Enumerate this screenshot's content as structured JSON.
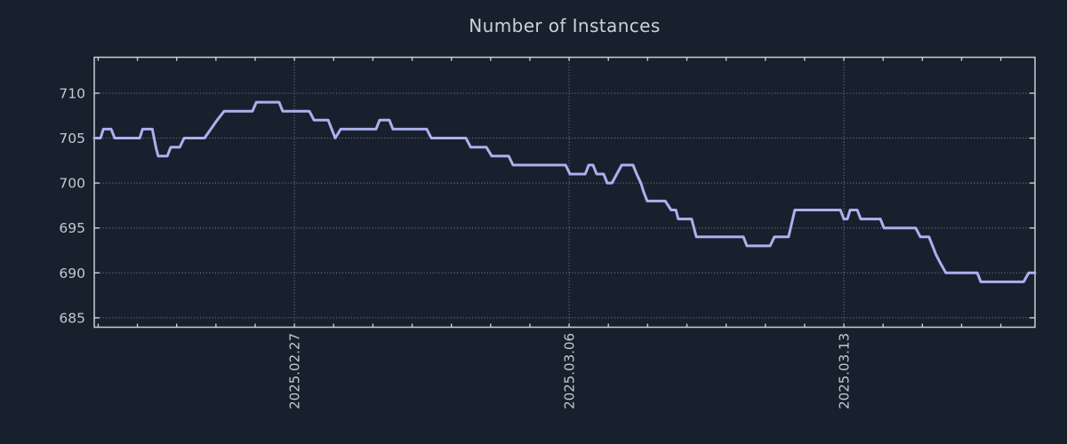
{
  "chart_data": {
    "type": "line",
    "title": "Number of Instances",
    "legend": "none",
    "grid": "dotted-major",
    "colors": {
      "background": "#18202d",
      "line": "#a9b1ef",
      "axis_border": "#c9ced8",
      "grid_line": "#858c98",
      "tick_text": "#c3c9d3",
      "title_text": "#ccd1da"
    },
    "x_axis": {
      "unit": "days_since_2025-02-22",
      "lim": [
        -0.1,
        23.87
      ],
      "minor_tick_every_days": 1,
      "major_ticks": [
        {
          "day": 5,
          "label": "2025.02.27"
        },
        {
          "day": 12,
          "label": "2025.03.06"
        },
        {
          "day": 19,
          "label": "2025.03.13"
        }
      ]
    },
    "y_axis": {
      "lim": [
        683.95,
        714.0
      ],
      "ticks": [
        685,
        690,
        695,
        700,
        705,
        710
      ]
    },
    "series": [
      {
        "name": "instances",
        "points": [
          [
            -0.1,
            705
          ],
          [
            0.06,
            705
          ],
          [
            0.13,
            706
          ],
          [
            0.33,
            706
          ],
          [
            0.42,
            705
          ],
          [
            1.06,
            705
          ],
          [
            1.13,
            706
          ],
          [
            1.38,
            706
          ],
          [
            1.47,
            704
          ],
          [
            1.53,
            703
          ],
          [
            1.76,
            703
          ],
          [
            1.85,
            704
          ],
          [
            2.08,
            704
          ],
          [
            2.19,
            705
          ],
          [
            2.71,
            705
          ],
          [
            2.87,
            706
          ],
          [
            3.03,
            707
          ],
          [
            3.21,
            708
          ],
          [
            3.93,
            708
          ],
          [
            4.03,
            709
          ],
          [
            4.61,
            709
          ],
          [
            4.7,
            708
          ],
          [
            5.38,
            708
          ],
          [
            5.5,
            707
          ],
          [
            5.86,
            707
          ],
          [
            6.04,
            705
          ],
          [
            6.18,
            706
          ],
          [
            7.08,
            706
          ],
          [
            7.17,
            707
          ],
          [
            7.42,
            707
          ],
          [
            7.51,
            706
          ],
          [
            8.37,
            706
          ],
          [
            8.49,
            705
          ],
          [
            9.37,
            705
          ],
          [
            9.49,
            704
          ],
          [
            9.89,
            704
          ],
          [
            10.03,
            703
          ],
          [
            10.46,
            703
          ],
          [
            10.57,
            702
          ],
          [
            11.91,
            702
          ],
          [
            12.02,
            701
          ],
          [
            12.41,
            701
          ],
          [
            12.5,
            702
          ],
          [
            12.61,
            702
          ],
          [
            12.7,
            701
          ],
          [
            12.88,
            701
          ],
          [
            12.97,
            700
          ],
          [
            13.09,
            700
          ],
          [
            13.34,
            702
          ],
          [
            13.63,
            702
          ],
          [
            13.72,
            701
          ],
          [
            13.83,
            700
          ],
          [
            13.9,
            699
          ],
          [
            13.99,
            698
          ],
          [
            14.45,
            698
          ],
          [
            14.6,
            697
          ],
          [
            14.72,
            697
          ],
          [
            14.78,
            696
          ],
          [
            15.12,
            696
          ],
          [
            15.24,
            694
          ],
          [
            16.44,
            694
          ],
          [
            16.53,
            693
          ],
          [
            17.12,
            693
          ],
          [
            17.23,
            694
          ],
          [
            17.59,
            694
          ],
          [
            17.75,
            697
          ],
          [
            18.91,
            697
          ],
          [
            19.0,
            696
          ],
          [
            19.09,
            696
          ],
          [
            19.16,
            697
          ],
          [
            19.34,
            697
          ],
          [
            19.43,
            696
          ],
          [
            19.93,
            696
          ],
          [
            20.02,
            695
          ],
          [
            20.83,
            695
          ],
          [
            20.95,
            694
          ],
          [
            21.17,
            694
          ],
          [
            21.26,
            693
          ],
          [
            21.35,
            692
          ],
          [
            21.47,
            691
          ],
          [
            21.6,
            690
          ],
          [
            22.4,
            690
          ],
          [
            22.49,
            689
          ],
          [
            23.58,
            689
          ],
          [
            23.71,
            690
          ],
          [
            23.87,
            690
          ]
        ]
      }
    ]
  }
}
